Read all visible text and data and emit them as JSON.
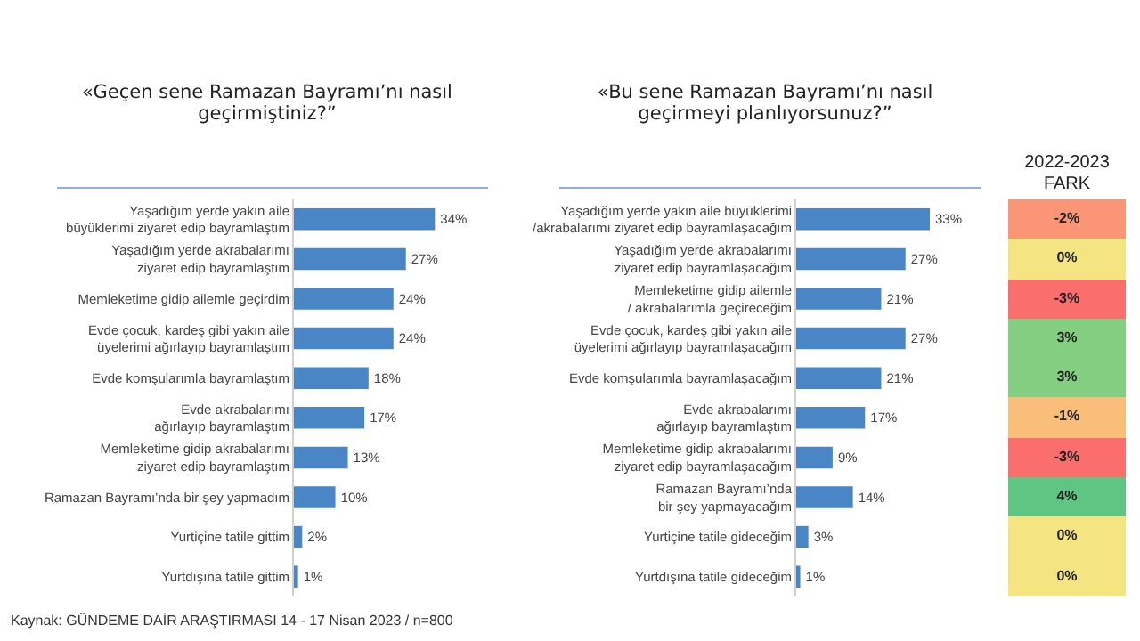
{
  "chart_data": [
    {
      "type": "bar",
      "orientation": "horizontal",
      "title": "«Geçen sene Ramazan Bayramı’nı nasıl geçirmiştiniz?”",
      "categories": [
        "Yaşadığım yerde yakın aile büyüklerimi ziyaret edip bayramlaştım",
        "Yaşadığım yerde akrabalarımı ziyaret edip bayramlaştım",
        "Memleketime gidip ailemle geçirdim",
        "Evde çocuk, kardeş gibi yakın aile üyelerimi ağırlayıp bayramlaştım",
        "Evde komşularımla bayramlaştım",
        "Evde akrabalarımı ağırlayıp bayramlaştım",
        "Memleketime gidip akrabalarımı ziyaret edip bayramlaştım",
        "Ramazan Bayramı’nda bir şey yapmadım",
        "Yurtiçine tatile gittim",
        "Yurtdışına tatile gittim"
      ],
      "values": [
        34,
        27,
        24,
        24,
        18,
        17,
        13,
        10,
        2,
        1
      ],
      "value_labels": [
        "34%",
        "27%",
        "24%",
        "24%",
        "18%",
        "17%",
        "13%",
        "10%",
        "2%",
        "1%"
      ],
      "color": "#4a86c5",
      "annotations": [
        "Kaynak: GÜNDEME DAİR ARAŞTIRMASI  14 - 17 Nisan 2023 / n=800"
      ]
    },
    {
      "type": "bar",
      "orientation": "horizontal",
      "title": "«Bu sene Ramazan Bayramı’nı nasıl geçirmeyi planlıyorsunuz?”",
      "categories": [
        "Yaşadığım yerde yakın aile büyüklerimi /akrabalarımı ziyaret edip bayramlaşacağım",
        "Yaşadığım yerde akrabalarımı ziyaret edip bayramlaşacağım",
        "Memleketime gidip ailemle / akrabalarımla geçireceğim",
        "Evde çocuk, kardeş gibi yakın aile üyelerimi ağırlayıp bayramlaşacağım",
        "Evde komşularımla bayramlaşacağım",
        "Evde akrabalarımı ağırlayıp bayramlaştım",
        "Memleketime gidip akrabalarımı ziyaret edip bayramlaşacağım",
        "Ramazan Bayramı’nda bir şey yapmayacağım",
        "Yurtiçine tatile gideceğim",
        "Yurtdışına tatile gideceğim"
      ],
      "values": [
        33,
        27,
        21,
        27,
        21,
        17,
        9,
        14,
        3,
        1
      ],
      "value_labels": [
        "33%",
        "27%",
        "21%",
        "27%",
        "21%",
        "17%",
        "9%",
        "14%",
        "3%",
        "1%"
      ],
      "color": "#4a86c5"
    },
    {
      "type": "heatmap",
      "title": "2022-2023 FARK",
      "categories": [
        null
      ],
      "y_categories": [
        null,
        null,
        null,
        null,
        null,
        null,
        null,
        null,
        null,
        null
      ],
      "cells": [
        [
          -2
        ],
        [
          0
        ],
        [
          -3
        ],
        [
          3
        ],
        [
          3
        ],
        [
          -1
        ],
        [
          -3
        ],
        [
          4
        ],
        [
          0
        ],
        [
          0
        ]
      ],
      "cell_labels": [
        [
          "-2%"
        ],
        [
          "0%"
        ],
        [
          "-3%"
        ],
        [
          "3%"
        ],
        [
          "3%"
        ],
        [
          "-1%"
        ],
        [
          "-3%"
        ],
        [
          "4%"
        ],
        [
          "0%"
        ],
        [
          "0%"
        ]
      ]
    }
  ]
}
